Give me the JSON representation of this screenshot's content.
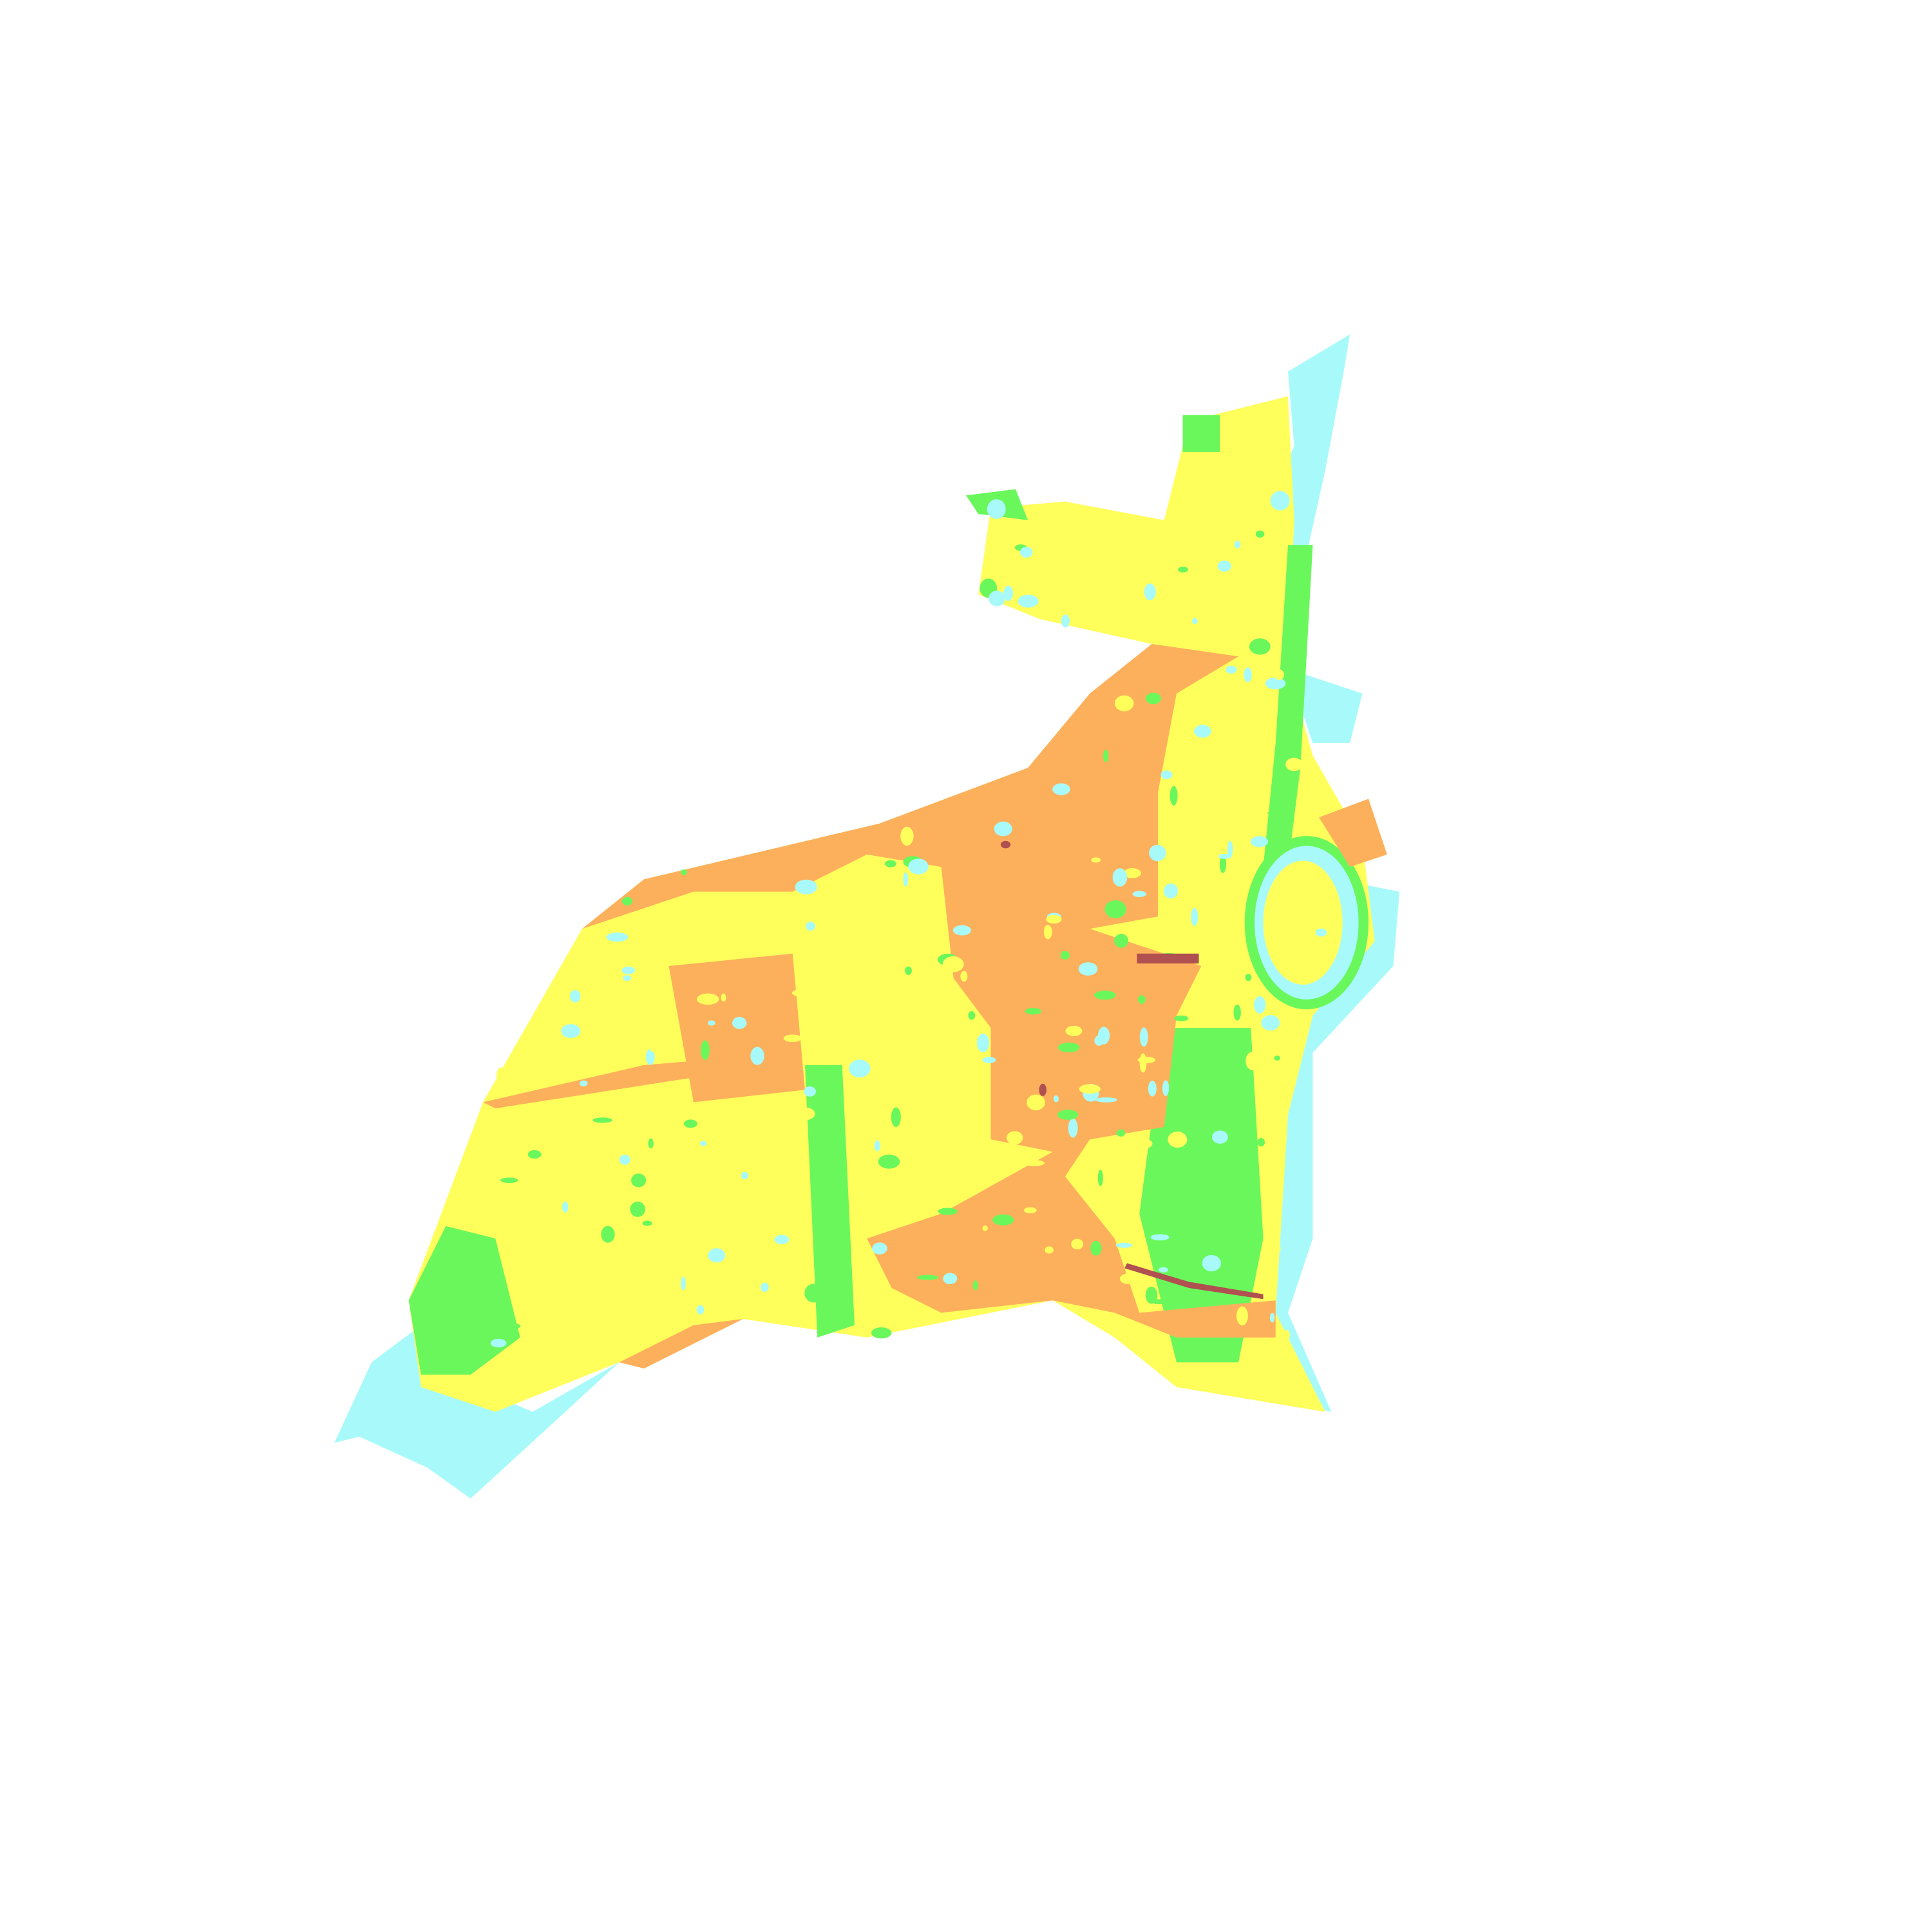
{
  "map": {
    "type": "classified raster map",
    "background": "#ffffff",
    "colors": {
      "class_1": "#a8fafa",
      "class_2": "#6af75c",
      "class_3": "#ffff5c",
      "class_4": "#fdb05c",
      "class_5": "#b05050"
    }
  }
}
